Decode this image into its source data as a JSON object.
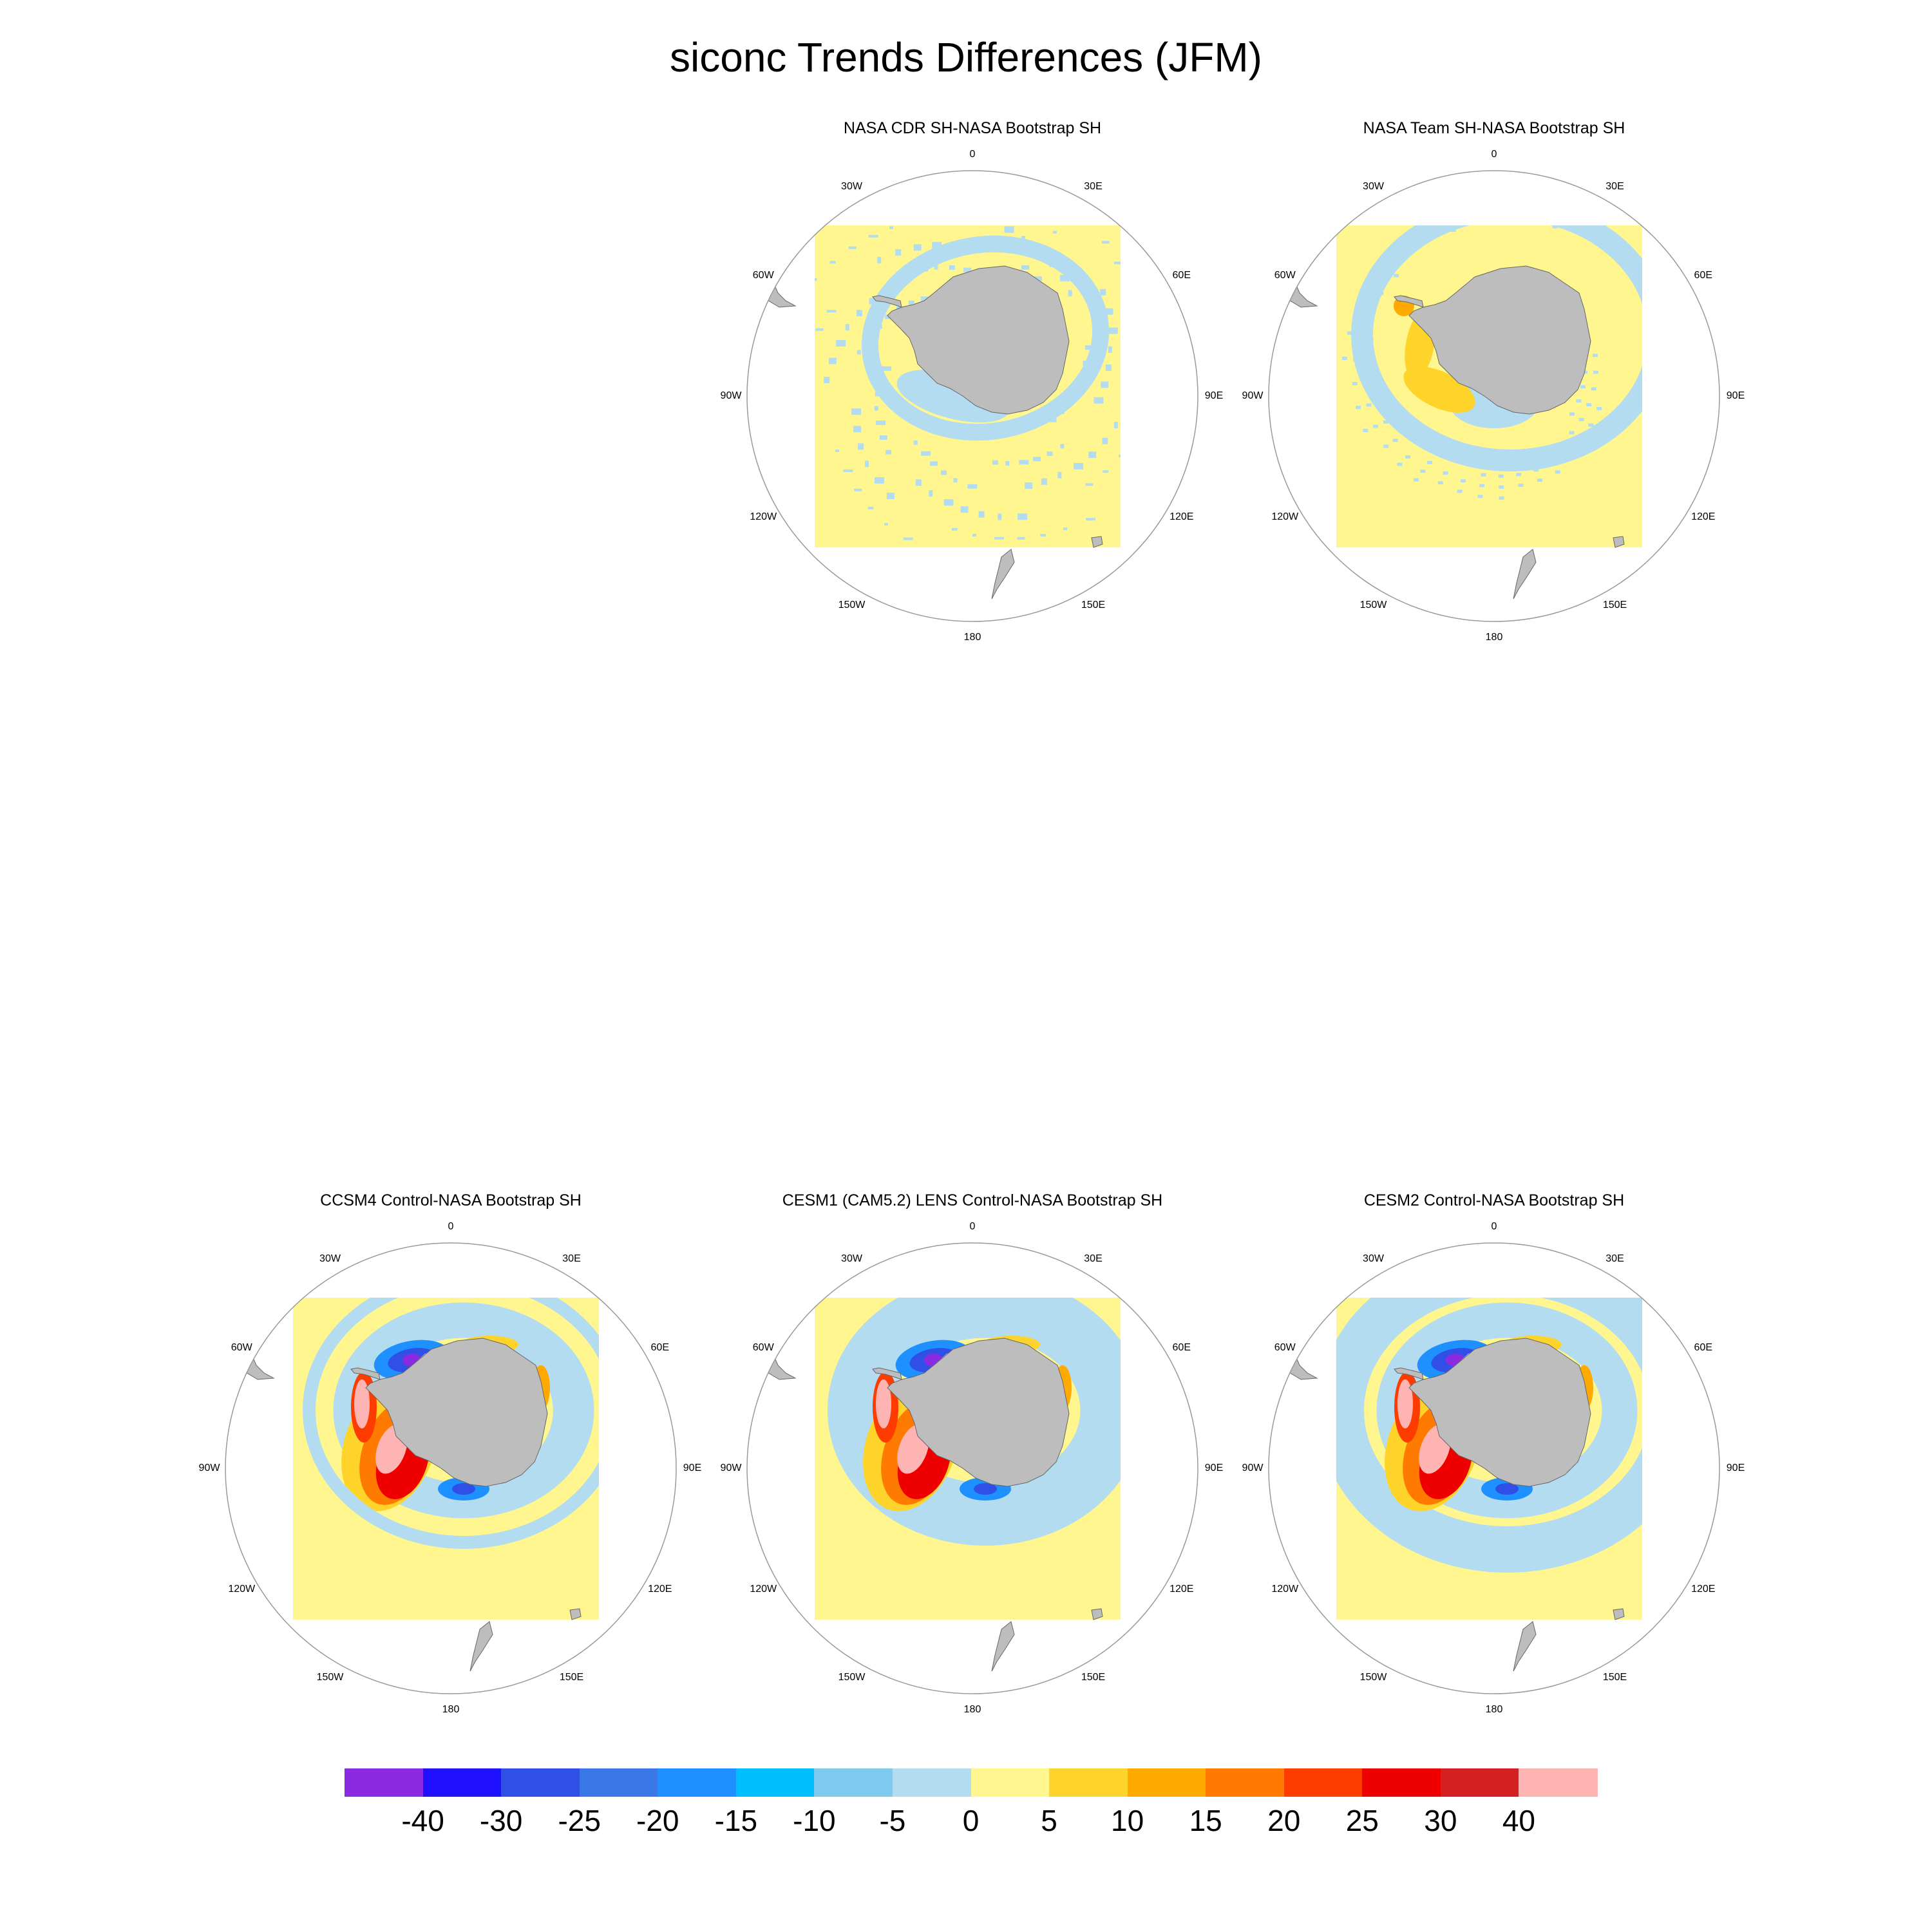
{
  "title": "siconc Trends Differences (JFM)",
  "lon_labels": [
    "0",
    "30E",
    "60E",
    "90E",
    "120E",
    "150E",
    "180",
    "150W",
    "120W",
    "90W",
    "60W",
    "30W"
  ],
  "panels": [
    {
      "id": "cdr",
      "title": "NASA CDR SH-NASA Bootstrap SH",
      "pattern": "obs1"
    },
    {
      "id": "team",
      "title": "NASA Team SH-NASA Bootstrap SH",
      "pattern": "obs2"
    },
    {
      "id": "ccsm4",
      "title": "CCSM4 Control-NASA Bootstrap SH",
      "pattern": "model1"
    },
    {
      "id": "cesm1",
      "title": "CESM1 (CAM5.2) LENS Control-NASA Bootstrap SH",
      "pattern": "model2"
    },
    {
      "id": "cesm2",
      "title": "CESM2 Control-NASA Bootstrap SH",
      "pattern": "model3"
    }
  ],
  "colorbar": {
    "colors": [
      "#8a2be2",
      "#1f10ff",
      "#2f4fe6",
      "#3a78e8",
      "#1e90ff",
      "#00bfff",
      "#7ecbf0",
      "#b4dcf0",
      "#fff68f",
      "#ffd42a",
      "#ffaa00",
      "#ff7a00",
      "#ff3c00",
      "#ee0000",
      "#d42020",
      "#ffb4b4"
    ],
    "labels": [
      "-40",
      "-30",
      "-25",
      "-20",
      "-15",
      "-10",
      "-5",
      "0",
      "5",
      "10",
      "15",
      "20",
      "25",
      "30",
      "40"
    ]
  },
  "colors": {
    "land": "#bdbdbd",
    "pale_yellow": "#fff68f",
    "light_blue": "#b4dcf0",
    "circle": "#999999"
  }
}
